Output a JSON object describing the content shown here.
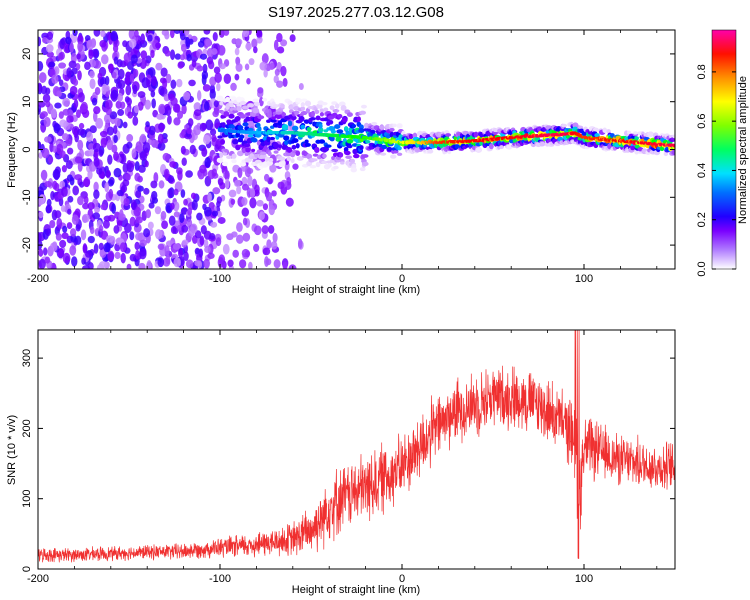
{
  "figure_title": "S197.2025.277.03.12.G08",
  "chart_data": [
    {
      "type": "heatmap",
      "title": "",
      "xlabel": "Height of straight line (km)",
      "ylabel": "Frequency (Hz)",
      "xlim": [
        -200,
        150
      ],
      "ylim": [
        -25,
        25
      ],
      "xticks": [
        -200,
        -100,
        0,
        100
      ],
      "yticks": [
        -20,
        -10,
        0,
        10,
        20
      ],
      "xtick_labels": [
        "-200",
        "-100",
        "0",
        "100"
      ],
      "ytick_labels": [
        "-20",
        "-10",
        "0",
        "10",
        "20"
      ],
      "colorbar": {
        "label": "Normalized spectral amplitude",
        "range": [
          0,
          0.97
        ],
        "ticks": [
          0,
          0.2,
          0.4,
          0.6,
          0.8
        ],
        "tick_labels": [
          "0.0",
          "0.2",
          "0.4",
          "0.6",
          "0.8"
        ],
        "colormap": [
          "#ffffff",
          "#7a00ff",
          "#0000ff",
          "#00c8ff",
          "#00ff00",
          "#ffff00",
          "#ff8000",
          "#ff0000",
          "#ff00aa"
        ]
      },
      "ridge": {
        "description": "dominant frequency ridge",
        "x": [
          -100,
          -80,
          -60,
          -40,
          -20,
          -10,
          0,
          10,
          20,
          40,
          60,
          80,
          90,
          95,
          100,
          120,
          150
        ],
        "frequency": [
          4,
          3.5,
          3.5,
          3,
          2.5,
          2,
          1.5,
          1.5,
          1.5,
          1.8,
          2.5,
          3,
          3.2,
          3.5,
          2.5,
          1.8,
          0.8
        ],
        "peak_amplitude": [
          0.3,
          0.35,
          0.4,
          0.45,
          0.5,
          0.55,
          0.6,
          0.65,
          0.8,
          0.85,
          0.85,
          0.9,
          0.9,
          0.85,
          0.8,
          0.85,
          0.9
        ]
      },
      "noise_region": {
        "x_range": [
          -200,
          -55
        ],
        "frequency_range": [
          -25,
          25
        ],
        "amplitude_range": [
          0.05,
          0.2
        ]
      }
    },
    {
      "type": "line",
      "title": "",
      "xlabel": "Height of straight line (km)",
      "ylabel": "SNR (10 * v/v)",
      "xlim": [
        -200,
        150
      ],
      "ylim": [
        0,
        340
      ],
      "xticks": [
        -200,
        -100,
        0,
        100
      ],
      "yticks": [
        0,
        100,
        200,
        300
      ],
      "xtick_labels": [
        "-200",
        "-100",
        "0",
        "100"
      ],
      "ytick_labels": [
        "0",
        "100",
        "200",
        "300"
      ],
      "color": "#f03030",
      "series": [
        {
          "name": "SNR",
          "x": [
            -200,
            -180,
            -160,
            -140,
            -120,
            -110,
            -100,
            -90,
            -80,
            -70,
            -60,
            -50,
            -45,
            -40,
            -30,
            -20,
            -10,
            0,
            10,
            20,
            30,
            40,
            50,
            60,
            70,
            80,
            90,
            95,
            97,
            100,
            110,
            120,
            130,
            140,
            150
          ],
          "mean": [
            20,
            20,
            22,
            24,
            25,
            28,
            30,
            32,
            35,
            38,
            42,
            55,
            70,
            90,
            105,
            115,
            130,
            145,
            175,
            205,
            225,
            235,
            245,
            245,
            240,
            225,
            205,
            185,
            100,
            175,
            165,
            155,
            150,
            145,
            145
          ],
          "spread": [
            10,
            10,
            10,
            10,
            12,
            12,
            14,
            16,
            18,
            20,
            25,
            35,
            40,
            50,
            45,
            50,
            50,
            45,
            50,
            45,
            45,
            45,
            45,
            45,
            45,
            45,
            45,
            55,
            80,
            45,
            40,
            35,
            35,
            35,
            35
          ]
        }
      ]
    }
  ]
}
